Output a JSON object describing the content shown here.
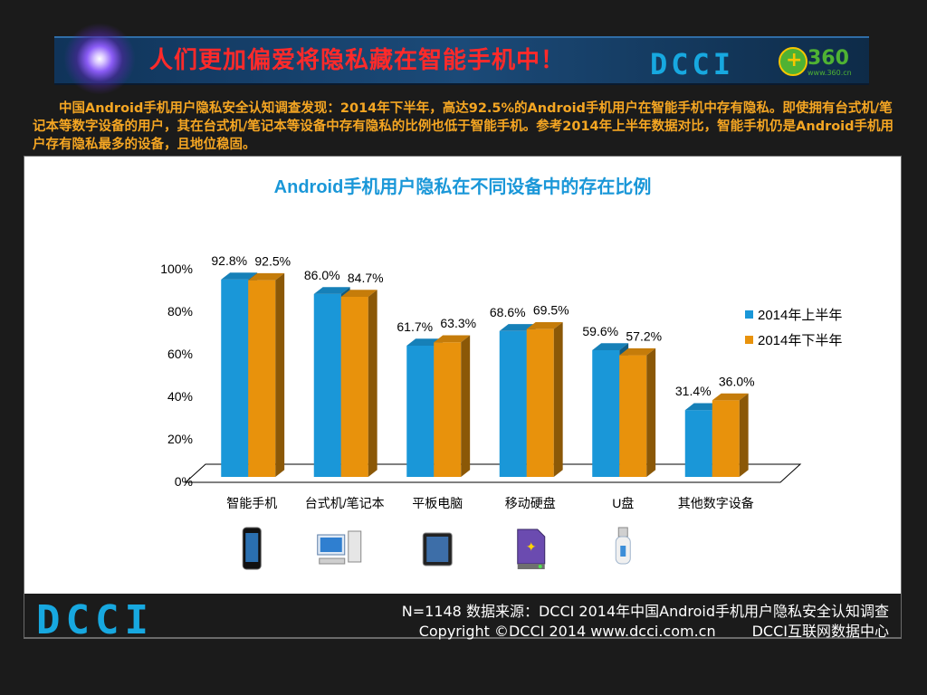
{
  "header": {
    "title": "人们更加偏爱将隐私藏在智能手机中！",
    "brand": "DCCI",
    "partner": "360",
    "partner_sub": "www.360.cn"
  },
  "summary": "中国Android手机用户隐私安全认知调查发现：2014年下半年，高达92.5%的Android手机用户在智能手机中存有隐私。即使拥有台式机/笔记本等数字设备的用户，其在台式机/笔记本等设备中存有隐私的比例也低于智能手机。参考2014年上半年数据对比，智能手机仍是Android手机用户存有隐私最多的设备，且地位稳固。",
  "chart_data": {
    "type": "bar",
    "title": "Android手机用户隐私在不同设备中的存在比例",
    "categories": [
      "智能手机",
      "台式机/笔记本",
      "平板电脑",
      "移动硬盘",
      "U盘",
      "其他数字设备"
    ],
    "series": [
      {
        "name": "2014年上半年",
        "values": [
          92.8,
          86.0,
          61.7,
          68.6,
          59.6,
          31.4
        ],
        "color": "#1a97d8"
      },
      {
        "name": "2014年下半年",
        "values": [
          92.5,
          84.7,
          63.3,
          69.5,
          57.2,
          36.0
        ],
        "color": "#e8920c"
      }
    ],
    "value_labels": [
      [
        "92.8%",
        "86.0%",
        "61.7%",
        "68.6%",
        "59.6%",
        "31.4%"
      ],
      [
        "92.5%",
        "84.7%",
        "63.3%",
        "69.5%",
        "57.2%",
        "36.0%"
      ]
    ],
    "ylim": [
      0,
      100
    ],
    "yticks": [
      "0%",
      "20%",
      "40%",
      "60%",
      "80%",
      "100%"
    ],
    "legend_position": "right",
    "category_icons": [
      "smartphone-icon",
      "desktop-computer-icon",
      "tablet-icon",
      "hard-drive-icon",
      "usb-drive-icon",
      ""
    ]
  },
  "footer": {
    "brand": "DCCI",
    "line1": "N=1148 数据来源：DCCI 2014年中国Android手机用户隐私安全认知调查",
    "line2_left": "Copyright ©DCCI 2014 www.dcci.com.cn",
    "line2_right": "DCCI互联网数据中心"
  }
}
